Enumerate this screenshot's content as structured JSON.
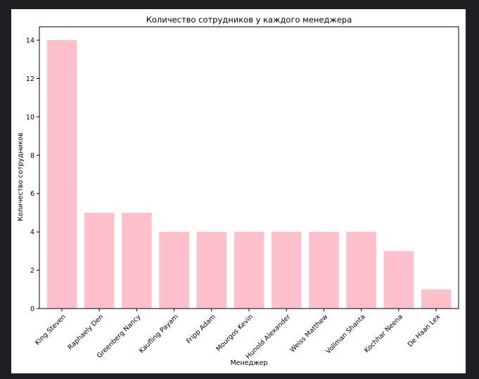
{
  "chart_data": {
    "type": "bar",
    "title": "Количество сотрудников у каждого менеджера",
    "xlabel": "Менеджер",
    "ylabel": "Количество сотрудников",
    "categories": [
      "King Steven",
      "Raphaely Den",
      "Greenberg Nancy",
      "Kaufling Payam",
      "Fripp Adam",
      "Mourgos Kevin",
      "Hunold Alexander",
      "Weiss Matthew",
      "Vollman Shanta",
      "Kochhar Neena",
      "De Haan Lex"
    ],
    "values": [
      14,
      5,
      5,
      4,
      4,
      4,
      4,
      4,
      4,
      3,
      1
    ],
    "ylim": [
      0,
      14.7
    ],
    "yticks": [
      0,
      2,
      4,
      6,
      8,
      10,
      12,
      14
    ],
    "bar_color": "#ffc0cb",
    "grid": false,
    "legend": "none"
  }
}
